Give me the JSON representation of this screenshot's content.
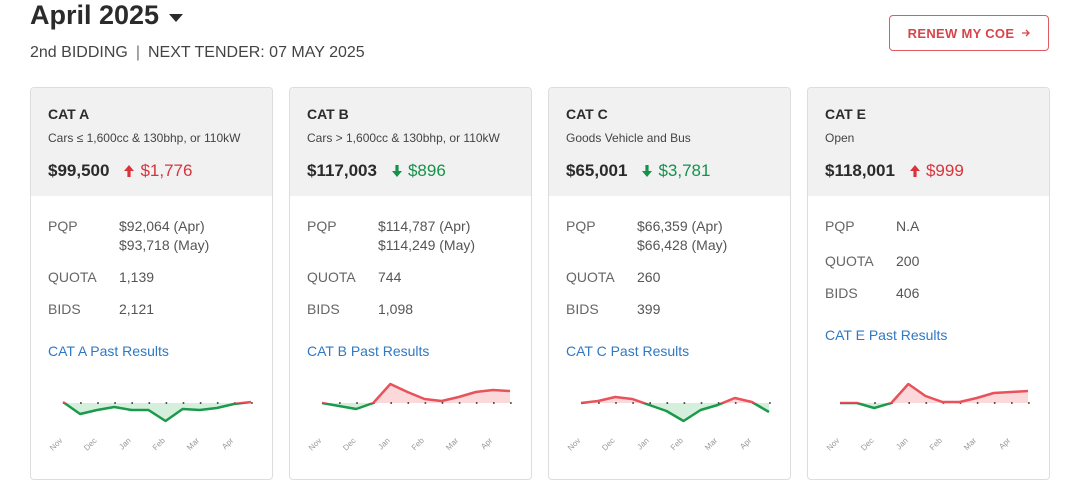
{
  "header": {
    "title": "April 2025",
    "round": "2nd BIDDING",
    "separator": "|",
    "tender": "NEXT TENDER: 07 MAY 2025",
    "button": "RENEW MY COE"
  },
  "cards": [
    {
      "name": "CAT A",
      "description": "Cars ≤ 1,600cc & 130bhp, or 110kW",
      "premium": "$99,500",
      "change": "$1,776",
      "direction": "up",
      "pqp_label": "PQP",
      "pqp": [
        "$92,064 (Apr)",
        "$93,718 (May)"
      ],
      "quota_label": "QUOTA",
      "quota": "1,139",
      "bids_label": "BIDS",
      "bids": "2,121",
      "link": "CAT A Past Results",
      "chart_data": {
        "type": "line",
        "xticks": [
          "Nov",
          "Dec",
          "Jan",
          "Feb",
          "Mar",
          "Apr"
        ],
        "values": [
          1,
          -11,
          -7,
          -4,
          -7,
          -7,
          -18,
          -6,
          -7,
          -5,
          -1,
          1
        ],
        "ylim": [
          -20,
          20
        ],
        "yticks": [
          0
        ],
        "up_color": "#e8525a",
        "down_color": "#1a9a4a"
      }
    },
    {
      "name": "CAT B",
      "description": "Cars > 1,600cc & 130bhp, or 110kW",
      "premium": "$117,003",
      "change": "$896",
      "direction": "down",
      "pqp_label": "PQP",
      "pqp": [
        "$114,787 (Apr)",
        "$114,249 (May)"
      ],
      "quota_label": "QUOTA",
      "quota": "744",
      "bids_label": "BIDS",
      "bids": "1,098",
      "link": "CAT B Past Results",
      "chart_data": {
        "type": "line",
        "xticks": [
          "Nov",
          "Dec",
          "Jan",
          "Feb",
          "Mar",
          "Apr"
        ],
        "values": [
          0,
          -3,
          -6,
          0,
          19,
          11,
          4,
          2,
          6,
          11,
          13,
          12
        ],
        "ylim": [
          -20,
          20
        ],
        "yticks": [
          0
        ],
        "up_color": "#e8525a",
        "down_color": "#1a9a4a"
      }
    },
    {
      "name": "CAT C",
      "description": "Goods Vehicle and Bus",
      "premium": "$65,001",
      "change": "$3,781",
      "direction": "down",
      "pqp_label": "PQP",
      "pqp": [
        "$66,359 (Apr)",
        "$66,428 (May)"
      ],
      "quota_label": "QUOTA",
      "quota": "260",
      "bids_label": "BIDS",
      "bids": "399",
      "link": "CAT C Past Results",
      "chart_data": {
        "type": "line",
        "xticks": [
          "Nov",
          "Dec",
          "Jan",
          "Feb",
          "Mar",
          "Apr"
        ],
        "values": [
          0,
          2,
          6,
          4,
          -2,
          -8,
          -18,
          -7,
          -2,
          5,
          1,
          -9
        ],
        "ylim": [
          -20,
          20
        ],
        "yticks": [
          0
        ],
        "up_color": "#e8525a",
        "down_color": "#1a9a4a"
      }
    },
    {
      "name": "CAT E",
      "description": "Open",
      "premium": "$118,001",
      "change": "$999",
      "direction": "up",
      "pqp_label": "PQP",
      "pqp": [
        "N.A"
      ],
      "quota_label": "QUOTA",
      "quota": "200",
      "bids_label": "BIDS",
      "bids": "406",
      "link": "CAT E Past Results",
      "chart_data": {
        "type": "line",
        "xticks": [
          "Nov",
          "Dec",
          "Jan",
          "Feb",
          "Mar",
          "Apr"
        ],
        "values": [
          0,
          0,
          -5,
          0,
          19,
          7,
          1,
          1,
          5,
          10,
          11,
          12
        ],
        "ylim": [
          -20,
          20
        ],
        "yticks": [
          0
        ],
        "up_color": "#e8525a",
        "down_color": "#1a9a4a"
      }
    }
  ]
}
